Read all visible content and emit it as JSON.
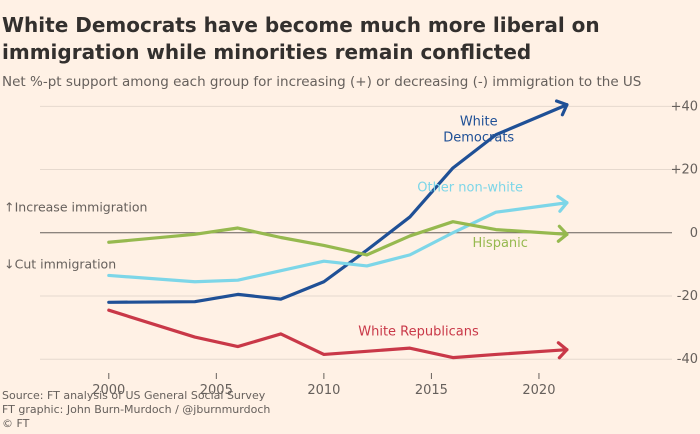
{
  "header": {
    "title": "White Democrats have become much more liberal on immigration while minorities remain conflicted",
    "subtitle": "Net %-pt support among each group for increasing (+) or decreasing (-) immigration to the US"
  },
  "footer": {
    "source": "Source: FT analysis of US General Social Survey",
    "graphic": "FT graphic: John Burn-Murdoch / @jburnmurdoch",
    "copyright": "© FT"
  },
  "colors": {
    "background": "#fff1e5",
    "gridline": "#e6d9ce",
    "zeroline": "#66605c",
    "text": "#33302e",
    "muted": "#66605c"
  },
  "chart_data": {
    "type": "line",
    "title": "White Democrats have become much more liberal on immigration while minorities remain conflicted",
    "subtitle": "Net %-pt support among each group for increasing (+) or decreasing (-) immigration to the US",
    "xlabel": "",
    "ylabel": "",
    "xlim": [
      1995.5,
      2026
    ],
    "ylim": [
      -45,
      42
    ],
    "x_ticks": [
      2000,
      2005,
      2010,
      2015,
      2020
    ],
    "y_ticks": [
      {
        "value": 40,
        "label": "+40"
      },
      {
        "value": 20,
        "label": "+20"
      },
      {
        "value": 0,
        "label": "0"
      },
      {
        "value": -20,
        "label": "-20"
      },
      {
        "value": -40,
        "label": "-40"
      }
    ],
    "grid": true,
    "annotations": [
      {
        "text": "↑Increase immigration",
        "x": 1995.6,
        "y": 8
      },
      {
        "text": "↓Cut immigration",
        "x": 1995.6,
        "y": -10
      }
    ],
    "series": [
      {
        "name": "White Democrats",
        "label_lines": [
          "White",
          "Democrats"
        ],
        "color": "#1f5096",
        "x": [
          2000,
          2004,
          2006,
          2008,
          2010,
          2012,
          2014,
          2016,
          2018,
          2021.3
        ],
        "y": [
          -22,
          -21.8,
          -19.5,
          -21,
          -15.5,
          -5.5,
          5,
          20.5,
          31,
          40.5
        ],
        "label_at": {
          "x": 2017.2,
          "y": 34
        }
      },
      {
        "name": "Other non-white",
        "label_lines": [
          "Other non-white"
        ],
        "color": "#7dd6e8",
        "x": [
          2000,
          2004,
          2006,
          2008,
          2010,
          2012,
          2014,
          2016,
          2018,
          2021.3
        ],
        "y": [
          -13.5,
          -15.5,
          -15,
          -12,
          -9,
          -10.5,
          -7,
          0,
          6.5,
          9.5
        ],
        "label_at": {
          "x": 2016.8,
          "y": 13
        }
      },
      {
        "name": "Hispanic",
        "label_lines": [
          "Hispanic"
        ],
        "color": "#96b94f",
        "x": [
          2000,
          2004,
          2006,
          2008,
          2010,
          2012,
          2014,
          2016,
          2018,
          2021.3
        ],
        "y": [
          -3,
          -0.5,
          1.5,
          -1.5,
          -4,
          -7,
          -1,
          3.5,
          1,
          -0.5
        ],
        "label_at": {
          "x": 2018.2,
          "y": -4.5
        }
      },
      {
        "name": "White Republicans",
        "label_lines": [
          "White Republicans"
        ],
        "color": "#c93848",
        "x": [
          2000,
          2004,
          2006,
          2008,
          2010,
          2012,
          2014,
          2016,
          2018,
          2021.3
        ],
        "y": [
          -24.5,
          -33,
          -36,
          -32,
          -38.5,
          -37.5,
          -36.5,
          -39.5,
          -38.5,
          -37
        ],
        "label_at": {
          "x": 2014.4,
          "y": -32.5
        }
      }
    ]
  }
}
